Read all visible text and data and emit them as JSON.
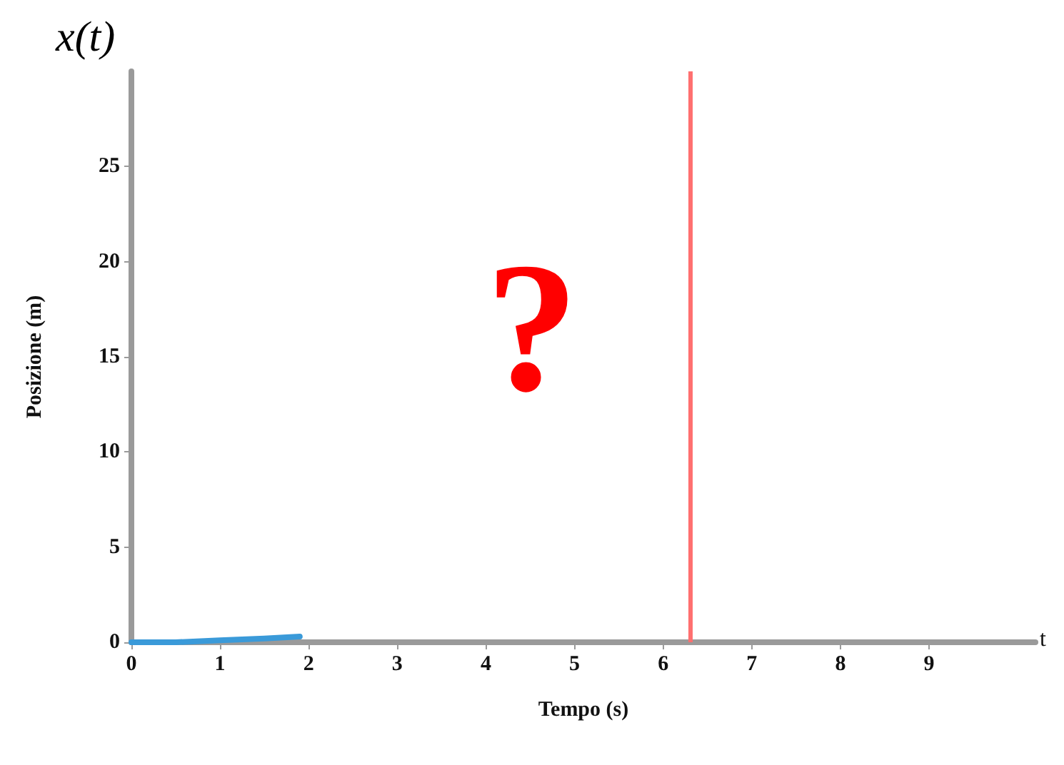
{
  "chart_data": {
    "type": "line",
    "title": "x(t)",
    "xlabel": "Tempo (s)",
    "ylabel": "Posizione (m)",
    "annotations": [
      "?",
      "t"
    ],
    "x": [
      0,
      0.5,
      1,
      1.5,
      1.9
    ],
    "series": [
      {
        "color": "#3a9ad9",
        "values": [
          0,
          0,
          0.1,
          0.2,
          0.3
        ]
      }
    ],
    "xlim": [
      0,
      10.2
    ],
    "xticks": [
      0,
      1,
      2,
      3,
      4,
      5,
      6,
      7,
      8,
      9
    ],
    "ylim": [
      0,
      30
    ],
    "yticks": [
      0,
      5,
      10,
      15,
      20,
      25
    ],
    "ref_lines": [
      {
        "axis": "x",
        "value": 6.3,
        "color": "#ff7070"
      }
    ],
    "grid": false,
    "marker": "none",
    "line_style": "solid"
  }
}
